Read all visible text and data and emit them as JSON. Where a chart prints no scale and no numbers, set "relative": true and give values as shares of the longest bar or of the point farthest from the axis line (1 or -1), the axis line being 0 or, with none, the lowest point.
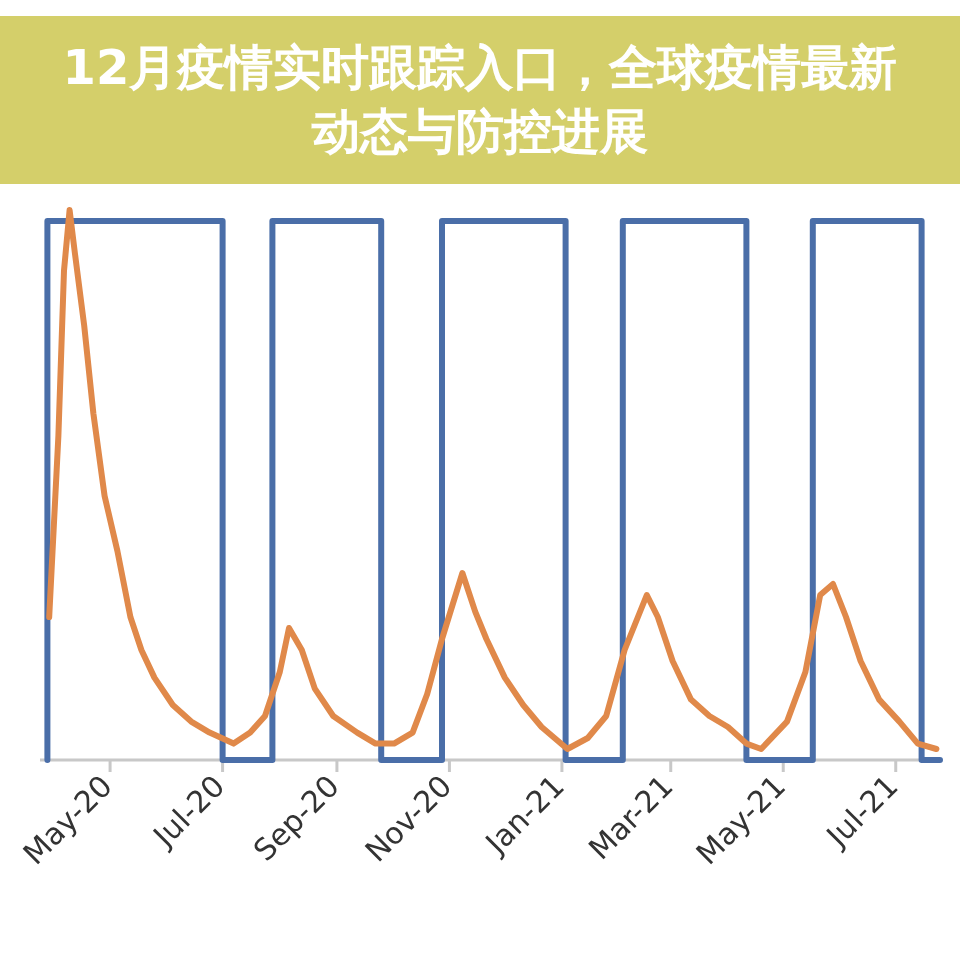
{
  "chart_data": {
    "type": "line",
    "title": "12月疫情实时跟踪入口，全球疫情最新动态与防控进展",
    "relative": true,
    "xlim": [
      "2020-03-24",
      "2021-07-25"
    ],
    "xticks": [
      {
        "value": "2020-05-01",
        "label": "May-20"
      },
      {
        "value": "2020-07-01",
        "label": "Jul-20"
      },
      {
        "value": "2020-09-01",
        "label": "Sep-20"
      },
      {
        "value": "2020-11-01",
        "label": "Nov-20"
      },
      {
        "value": "2021-01-01",
        "label": "Jan-21"
      },
      {
        "value": "2021-03-01",
        "label": "Mar-21"
      },
      {
        "value": "2021-05-01",
        "label": "May-21"
      },
      {
        "value": "2021-07-01",
        "label": "Jul-21"
      }
    ],
    "series": [
      {
        "type": "step",
        "color": "#4a6ea8",
        "x": [
          "2020-03-28",
          "2020-03-28",
          "2020-07-01",
          "2020-07-28",
          "2020-09-25",
          "2020-10-28",
          "2021-01-03",
          "2021-02-03",
          "2021-04-11",
          "2021-05-17",
          "2021-07-15",
          "2021-07-25"
        ],
        "values": [
          0,
          0.98,
          0,
          0.98,
          0,
          0.98,
          0,
          0.98,
          0,
          0.98,
          0,
          0
        ]
      },
      {
        "type": "line",
        "color": "#e0894a",
        "x": [
          "2020-03-29",
          "2020-04-03",
          "2020-04-06",
          "2020-04-09",
          "2020-04-12",
          "2020-04-17",
          "2020-04-22",
          "2020-04-28",
          "2020-05-05",
          "2020-05-12",
          "2020-05-18",
          "2020-05-25",
          "2020-06-04",
          "2020-06-14",
          "2020-06-24",
          "2020-07-07",
          "2020-07-16",
          "2020-07-24",
          "2020-08-01",
          "2020-08-06",
          "2020-08-13",
          "2020-08-20",
          "2020-08-30",
          "2020-09-12",
          "2020-09-22",
          "2020-10-02",
          "2020-10-12",
          "2020-10-20",
          "2020-10-28",
          "2020-11-08",
          "2020-11-15",
          "2020-11-21",
          "2020-12-01",
          "2020-12-11",
          "2020-12-21",
          "2021-01-04",
          "2021-01-15",
          "2021-01-25",
          "2021-02-04",
          "2021-02-16",
          "2021-02-22",
          "2021-03-02",
          "2021-03-12",
          "2021-03-22",
          "2021-04-01",
          "2021-04-11",
          "2021-04-19",
          "2021-05-03",
          "2021-05-13",
          "2021-05-21",
          "2021-05-28",
          "2021-06-04",
          "2021-06-12",
          "2021-06-22",
          "2021-07-03",
          "2021-07-13",
          "2021-07-23"
        ],
        "values": [
          0.26,
          0.59,
          0.89,
          1.0,
          0.92,
          0.79,
          0.63,
          0.48,
          0.38,
          0.26,
          0.2,
          0.15,
          0.1,
          0.07,
          0.05,
          0.03,
          0.05,
          0.08,
          0.16,
          0.24,
          0.2,
          0.13,
          0.08,
          0.05,
          0.03,
          0.03,
          0.05,
          0.12,
          0.22,
          0.34,
          0.27,
          0.22,
          0.15,
          0.1,
          0.06,
          0.02,
          0.04,
          0.08,
          0.2,
          0.3,
          0.26,
          0.18,
          0.11,
          0.08,
          0.06,
          0.03,
          0.02,
          0.07,
          0.16,
          0.3,
          0.32,
          0.26,
          0.18,
          0.11,
          0.07,
          0.03,
          0.02
        ]
      }
    ]
  }
}
